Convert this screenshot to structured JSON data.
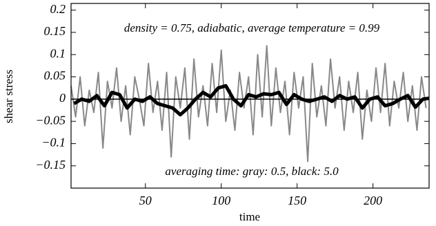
{
  "chart_data": {
    "type": "line",
    "annotations": [
      "density = 0.75,  adiabatic,  average temperature = 0.99",
      "averaging time:   gray: 0.5,  black: 5.0"
    ],
    "xlabel": "time",
    "ylabel": "shear stress",
    "xlim": [
      1,
      237
    ],
    "ylim": [
      -0.2,
      0.215
    ],
    "xticks": [
      50,
      100,
      150,
      200
    ],
    "yticks": [
      0.2,
      0.15,
      0.1,
      0.05,
      0,
      {
        "value": -0.05,
        "label": "−0.05"
      },
      {
        "value": -0.1,
        "label": "−0.1"
      },
      {
        "value": -0.15,
        "label": "−0.15"
      }
    ],
    "reference_line": 0,
    "series": [
      {
        "color": "#888888",
        "width": 2,
        "x": [
          1,
          4,
          7,
          10,
          13,
          16,
          19,
          22,
          25,
          28,
          31,
          34,
          37,
          40,
          43,
          46,
          49,
          52,
          55,
          58,
          61,
          64,
          67,
          70,
          73,
          76,
          79,
          82,
          85,
          88,
          91,
          94,
          97,
          100,
          103,
          106,
          109,
          112,
          115,
          118,
          121,
          124,
          127,
          130,
          133,
          136,
          139,
          142,
          145,
          148,
          151,
          154,
          157,
          160,
          163,
          166,
          169,
          172,
          175,
          178,
          181,
          184,
          187,
          190,
          193,
          196,
          199,
          202,
          205,
          208,
          211,
          214,
          217,
          220,
          223,
          226,
          229,
          232,
          235
        ],
        "values": [
          0.03,
          -0.04,
          0.05,
          -0.06,
          0.02,
          -0.03,
          0.06,
          -0.11,
          0.04,
          -0.02,
          0.07,
          -0.05,
          0.03,
          -0.08,
          0.05,
          0.0,
          -0.06,
          0.08,
          -0.03,
          0.04,
          -0.07,
          0.06,
          -0.13,
          0.05,
          -0.02,
          0.07,
          -0.09,
          0.09,
          -0.04,
          0.03,
          -0.06,
          0.08,
          -0.03,
          0.11,
          -0.05,
          0.02,
          -0.07,
          0.06,
          -0.02,
          0.05,
          -0.08,
          0.1,
          -0.04,
          0.12,
          -0.06,
          0.07,
          -0.03,
          0.04,
          -0.08,
          0.06,
          -0.02,
          0.05,
          -0.14,
          0.08,
          -0.04,
          0.03,
          -0.06,
          0.09,
          -0.02,
          0.05,
          -0.07,
          0.04,
          -0.03,
          0.06,
          -0.09,
          0.02,
          -0.05,
          0.07,
          -0.03,
          0.08,
          -0.06,
          0.04,
          -0.02,
          0.06,
          -0.05,
          0.03,
          -0.07,
          0.05,
          -0.02
        ]
      },
      {
        "color": "#000000",
        "width": 5,
        "x": [
          3,
          8,
          13,
          18,
          23,
          28,
          33,
          38,
          43,
          48,
          53,
          58,
          63,
          68,
          73,
          78,
          83,
          88,
          93,
          98,
          103,
          108,
          113,
          118,
          123,
          128,
          133,
          138,
          143,
          148,
          153,
          158,
          163,
          168,
          173,
          178,
          183,
          188,
          193,
          198,
          203,
          208,
          213,
          218,
          223,
          228,
          233,
          237
        ],
        "values": [
          -0.01,
          0.0,
          -0.005,
          0.008,
          -0.015,
          0.015,
          0.01,
          -0.02,
          0.0,
          -0.005,
          0.005,
          -0.01,
          -0.015,
          -0.02,
          -0.035,
          -0.02,
          0.0,
          0.015,
          0.005,
          0.025,
          0.03,
          0.0,
          -0.015,
          0.01,
          0.005,
          0.012,
          0.01,
          0.015,
          -0.012,
          0.01,
          0.0,
          -0.005,
          0.0,
          0.005,
          -0.005,
          0.008,
          0.0,
          0.005,
          -0.02,
          0.0,
          0.005,
          -0.015,
          -0.01,
          0.0,
          0.008,
          -0.018,
          0.0,
          0.002
        ]
      }
    ]
  }
}
